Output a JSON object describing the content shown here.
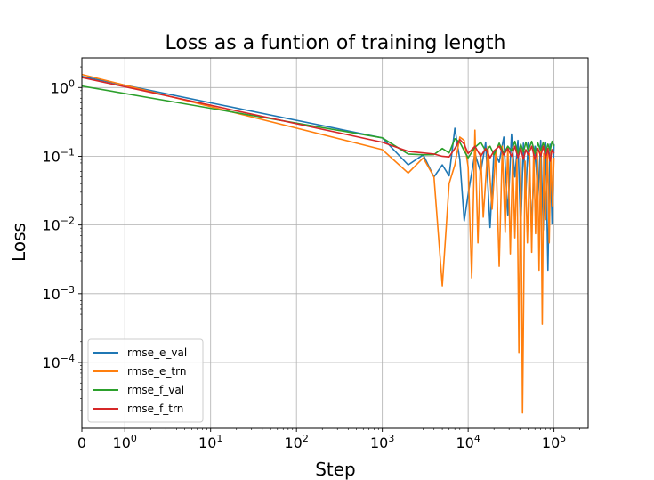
{
  "chart_data": {
    "type": "line",
    "title": "Loss as a funtion of training length",
    "xlabel": "Step",
    "ylabel": "Loss",
    "xscale": "symlog",
    "yscale": "log",
    "xlim": [
      0,
      250000
    ],
    "ylim": [
      1.1e-05,
      2.7
    ],
    "grid": true,
    "legend_position": "lower-left",
    "x_tick_labels": [
      {
        "value": 0,
        "mantissa": "0",
        "exp": ""
      },
      {
        "value": 1,
        "mantissa": "10",
        "exp": "0"
      },
      {
        "value": 10,
        "mantissa": "10",
        "exp": "1"
      },
      {
        "value": 100,
        "mantissa": "10",
        "exp": "2"
      },
      {
        "value": 1000,
        "mantissa": "10",
        "exp": "3"
      },
      {
        "value": 10000,
        "mantissa": "10",
        "exp": "4"
      },
      {
        "value": 100000,
        "mantissa": "10",
        "exp": "5"
      }
    ],
    "y_tick_labels": [
      {
        "value": 1,
        "mantissa": "10",
        "exp": "0"
      },
      {
        "value": 0.1,
        "mantissa": "10",
        "exp": "−1"
      },
      {
        "value": 0.01,
        "mantissa": "10",
        "exp": "−2"
      },
      {
        "value": 0.001,
        "mantissa": "10",
        "exp": "−3"
      },
      {
        "value": 0.0001,
        "mantissa": "10",
        "exp": "−4"
      }
    ],
    "series": [
      {
        "name": "rmse_e_val",
        "color": "#1f77b4",
        "x": [
          0,
          1000,
          2000,
          3000,
          4000,
          5000,
          6000,
          7000,
          8000,
          9000,
          10000,
          12000,
          14000,
          16000,
          18000,
          20000,
          23000,
          26000,
          29000,
          32000,
          35000,
          38000,
          41000,
          44000,
          47000,
          50000,
          55000,
          60000,
          65000,
          70000,
          75000,
          80000,
          85000,
          90000,
          95000,
          100000
        ],
        "y": [
          1.45,
          0.185,
          0.075,
          0.105,
          0.05,
          0.075,
          0.052,
          0.255,
          0.09,
          0.0115,
          0.028,
          0.11,
          0.058,
          0.16,
          0.0092,
          0.12,
          0.082,
          0.19,
          0.014,
          0.21,
          0.05,
          0.17,
          0.008,
          0.155,
          0.028,
          0.16,
          0.0095,
          0.14,
          0.024,
          0.17,
          0.0085,
          0.16,
          0.0022,
          0.15,
          0.0104,
          0.15
        ]
      },
      {
        "name": "rmse_e_trn",
        "color": "#ff7f0e",
        "x": [
          0,
          1000,
          2000,
          3000,
          4000,
          5000,
          6000,
          7000,
          8000,
          9000,
          10000,
          11000,
          12000,
          13000,
          14000,
          15000,
          17000,
          19000,
          21000,
          23000,
          25000,
          27000,
          29000,
          31000,
          33000,
          35000,
          37000,
          39000,
          41000,
          43000,
          46000,
          49000,
          52000,
          55000,
          58000,
          61000,
          64000,
          67000,
          70000,
          73000,
          76000,
          80000,
          84000,
          88000,
          92000,
          96000,
          100000
        ],
        "y": [
          1.55,
          0.125,
          0.057,
          0.095,
          0.05,
          0.0013,
          0.04,
          0.075,
          0.19,
          0.17,
          0.07,
          0.0017,
          0.24,
          0.0055,
          0.11,
          0.013,
          0.14,
          0.017,
          0.12,
          0.0025,
          0.14,
          0.0078,
          0.14,
          0.0038,
          0.11,
          0.0065,
          0.09,
          0.00014,
          0.095,
          1.85e-05,
          0.085,
          0.0055,
          0.11,
          0.004,
          0.13,
          0.0075,
          0.12,
          0.0022,
          0.12,
          0.00036,
          0.11,
          0.012,
          0.13,
          0.0055,
          0.12,
          0.019,
          0.095
        ]
      },
      {
        "name": "rmse_f_val",
        "color": "#2ca02c",
        "x": [
          0,
          1000,
          2000,
          3000,
          4000,
          5000,
          6000,
          7000,
          8000,
          9000,
          10000,
          12000,
          14000,
          16000,
          18000,
          20000,
          23000,
          26000,
          29000,
          32000,
          35000,
          38000,
          41000,
          44000,
          47000,
          50000,
          55000,
          60000,
          65000,
          70000,
          75000,
          80000,
          85000,
          90000,
          95000,
          100000
        ],
        "y": [
          1.05,
          0.185,
          0.108,
          0.105,
          0.106,
          0.13,
          0.112,
          0.18,
          0.16,
          0.12,
          0.095,
          0.135,
          0.16,
          0.12,
          0.14,
          0.105,
          0.155,
          0.11,
          0.14,
          0.12,
          0.165,
          0.11,
          0.15,
          0.115,
          0.16,
          0.12,
          0.165,
          0.11,
          0.155,
          0.12,
          0.16,
          0.115,
          0.15,
          0.12,
          0.165,
          0.14
        ]
      },
      {
        "name": "rmse_f_trn",
        "color": "#d62728",
        "x": [
          0,
          1000,
          2000,
          3000,
          4000,
          5000,
          6000,
          7000,
          8000,
          9000,
          10000,
          12000,
          14000,
          16000,
          18000,
          20000,
          23000,
          26000,
          29000,
          32000,
          35000,
          38000,
          41000,
          44000,
          47000,
          50000,
          55000,
          60000,
          65000,
          70000,
          75000,
          80000,
          85000,
          90000,
          95000,
          100000
        ],
        "y": [
          1.4,
          0.16,
          0.118,
          0.112,
          0.108,
          0.1,
          0.098,
          0.13,
          0.175,
          0.15,
          0.11,
          0.14,
          0.1,
          0.13,
          0.095,
          0.12,
          0.14,
          0.105,
          0.13,
          0.1,
          0.14,
          0.095,
          0.13,
          0.09,
          0.125,
          0.105,
          0.14,
          0.09,
          0.13,
          0.1,
          0.14,
          0.095,
          0.13,
          0.085,
          0.125,
          0.11
        ]
      }
    ]
  }
}
